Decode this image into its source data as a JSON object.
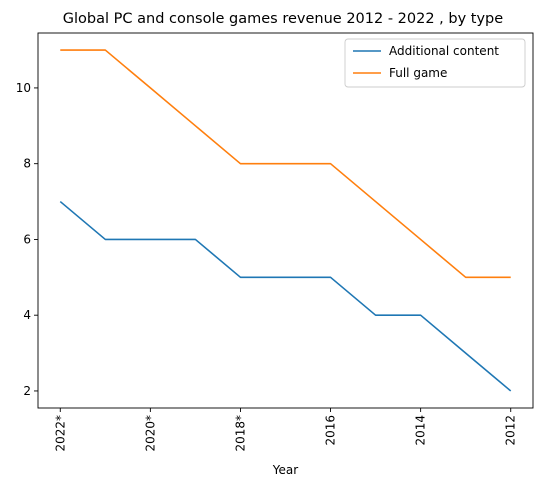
{
  "chart_data": {
    "type": "line",
    "title": "Global PC and console games revenue 2012 - 2022 , by type",
    "xlabel": "Year",
    "ylabel": "",
    "x": [
      "2022*",
      "2021*",
      "2020*",
      "2019*",
      "2018*",
      "2017",
      "2016",
      "2015",
      "2014",
      "2013",
      "2012"
    ],
    "x_tick_labels": [
      "2022*",
      "2020*",
      "2018*",
      "2016",
      "2014",
      "2012"
    ],
    "y_ticks": [
      2,
      4,
      6,
      8,
      10
    ],
    "ylim": [
      1.55,
      11.45
    ],
    "legend_position": "top-right",
    "grid": false,
    "series": [
      {
        "name": "Additional content",
        "color": "#1f77b4",
        "values": [
          7,
          6,
          6,
          6,
          5,
          5,
          5,
          4,
          4,
          3,
          2
        ]
      },
      {
        "name": "Full game",
        "color": "#ff7f0e",
        "values": [
          11,
          11,
          10,
          9,
          8,
          8,
          8,
          7,
          6,
          5,
          5
        ]
      }
    ]
  }
}
